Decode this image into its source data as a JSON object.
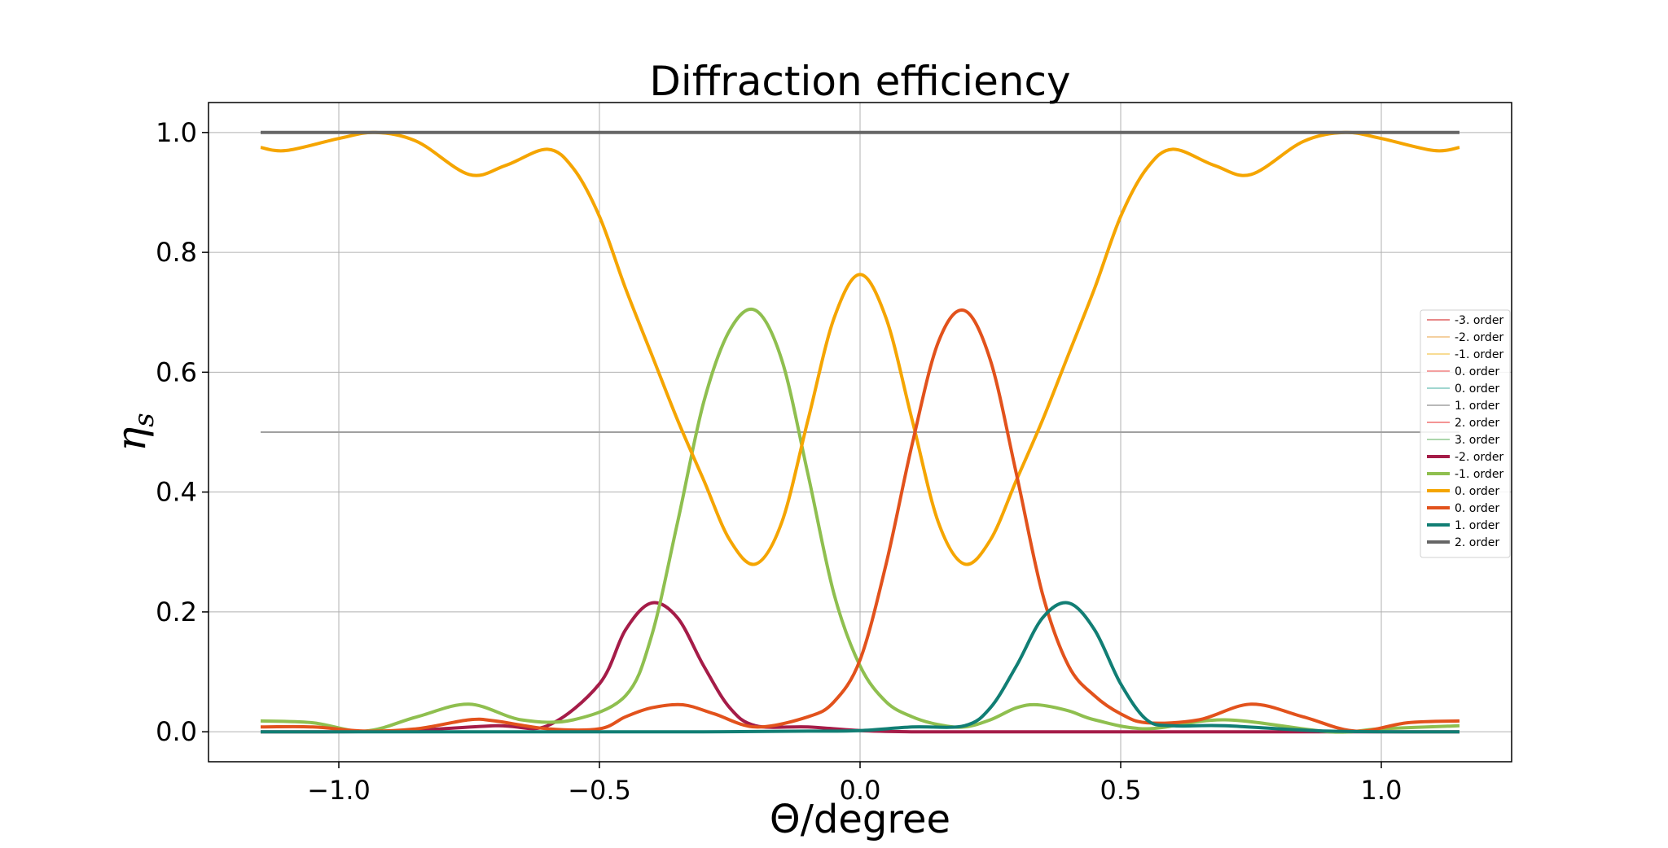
{
  "chart_data": {
    "type": "line",
    "title": "Diffraction efficiency",
    "xlabel": "Θ/degree",
    "ylabel": "η",
    "ylabel_subscript": "s",
    "xlim": [
      -1.25,
      1.25
    ],
    "ylim": [
      -0.05,
      1.05
    ],
    "xticks": [
      -1.0,
      -0.5,
      0.0,
      0.5,
      1.0
    ],
    "xtick_labels": [
      "−1.0",
      "−0.5",
      "0.0",
      "0.5",
      "1.0"
    ],
    "yticks": [
      0.0,
      0.2,
      0.4,
      0.6,
      0.8,
      1.0
    ],
    "ytick_labels": [
      "0.0",
      "0.2",
      "0.4",
      "0.6",
      "0.8",
      "1.0"
    ],
    "grid": true,
    "legend_placement": "center-right",
    "x_range": [
      -1.15,
      1.15
    ],
    "series": [
      {
        "name": "-3. order",
        "color": "#e06060",
        "weight": "thin"
      },
      {
        "name": "-2. order",
        "color": "#f0c080",
        "weight": "thin"
      },
      {
        "name": "-1. order",
        "color": "#f5d070",
        "weight": "thin"
      },
      {
        "name": "0. order",
        "color": "#f08080",
        "weight": "thin"
      },
      {
        "name": "0. order",
        "color": "#80c8c0",
        "weight": "thin"
      },
      {
        "name": "1. order",
        "color": "#a0a0a0",
        "weight": "thin",
        "x": [
          -1.15,
          1.15
        ],
        "y": [
          0.5,
          0.5
        ]
      },
      {
        "name": "2. order",
        "color": "#f07070",
        "weight": "thin"
      },
      {
        "name": "3. order",
        "color": "#90c890",
        "weight": "thin"
      },
      {
        "name": "-2. order",
        "color": "#a51c48",
        "weight": "thick",
        "x": [
          -1.15,
          -0.9,
          -0.7,
          -0.6,
          -0.5,
          -0.45,
          -0.4,
          -0.35,
          -0.3,
          -0.25,
          -0.2,
          -0.1,
          0.0,
          0.1,
          0.2,
          0.3,
          0.5,
          0.7,
          0.9,
          1.15
        ],
        "y": [
          0.0,
          0.001,
          0.01,
          0.01,
          0.08,
          0.17,
          0.215,
          0.19,
          0.11,
          0.04,
          0.01,
          0.008,
          0.002,
          0.0,
          0.0,
          0.0,
          0.0,
          0.0,
          0.0,
          0.0
        ]
      },
      {
        "name": "-1. order",
        "color": "#8fbf4f",
        "weight": "thick",
        "x": [
          -1.15,
          -1.05,
          -0.95,
          -0.85,
          -0.75,
          -0.65,
          -0.55,
          -0.45,
          -0.4,
          -0.35,
          -0.3,
          -0.25,
          -0.2,
          -0.15,
          -0.1,
          -0.05,
          0.0,
          0.05,
          0.1,
          0.15,
          0.2,
          0.25,
          0.3,
          0.34,
          0.4,
          0.45,
          0.55,
          0.7,
          0.9,
          1.0,
          1.15
        ],
        "y": [
          0.018,
          0.015,
          0.001,
          0.025,
          0.046,
          0.02,
          0.02,
          0.06,
          0.16,
          0.35,
          0.55,
          0.67,
          0.703,
          0.62,
          0.43,
          0.23,
          0.11,
          0.05,
          0.025,
          0.012,
          0.008,
          0.02,
          0.04,
          0.045,
          0.035,
          0.02,
          0.005,
          0.02,
          0.0,
          0.005,
          0.01
        ]
      },
      {
        "name": "0. order",
        "color": "#f5a500",
        "weight": "thick",
        "x": [
          -1.15,
          -1.1,
          -1.0,
          -0.93,
          -0.85,
          -0.75,
          -0.68,
          -0.6,
          -0.55,
          -0.5,
          -0.45,
          -0.4,
          -0.35,
          -0.3,
          -0.25,
          -0.2,
          -0.15,
          -0.1,
          -0.05,
          0.0,
          0.05,
          0.1,
          0.15,
          0.2,
          0.25,
          0.3,
          0.35,
          0.4,
          0.45,
          0.5,
          0.55,
          0.6,
          0.68,
          0.75,
          0.85,
          0.93,
          1.0,
          1.1,
          1.15
        ],
        "y": [
          0.975,
          0.97,
          0.99,
          1.0,
          0.985,
          0.93,
          0.945,
          0.972,
          0.94,
          0.86,
          0.74,
          0.63,
          0.52,
          0.42,
          0.32,
          0.28,
          0.35,
          0.52,
          0.69,
          0.763,
          0.69,
          0.52,
          0.35,
          0.28,
          0.32,
          0.42,
          0.52,
          0.63,
          0.74,
          0.86,
          0.94,
          0.972,
          0.945,
          0.93,
          0.985,
          1.0,
          0.99,
          0.97,
          0.975
        ]
      },
      {
        "name": "0. order",
        "color": "#e2521c",
        "weight": "thick",
        "x": [
          -1.15,
          -1.05,
          -0.95,
          -0.85,
          -0.75,
          -0.7,
          -0.6,
          -0.5,
          -0.45,
          -0.4,
          -0.34,
          -0.28,
          -0.2,
          -0.1,
          -0.05,
          0.0,
          0.05,
          0.1,
          0.15,
          0.2,
          0.25,
          0.3,
          0.35,
          0.4,
          0.45,
          0.5,
          0.55,
          0.65,
          0.75,
          0.85,
          0.95,
          1.05,
          1.15
        ],
        "y": [
          0.008,
          0.008,
          0.001,
          0.005,
          0.02,
          0.018,
          0.005,
          0.005,
          0.025,
          0.04,
          0.045,
          0.03,
          0.008,
          0.025,
          0.05,
          0.12,
          0.28,
          0.48,
          0.65,
          0.703,
          0.62,
          0.43,
          0.23,
          0.11,
          0.06,
          0.03,
          0.015,
          0.02,
          0.046,
          0.025,
          0.001,
          0.015,
          0.018
        ]
      },
      {
        "name": "1. order",
        "color": "#117e74",
        "weight": "thick",
        "x": [
          -1.15,
          -0.9,
          -0.7,
          -0.5,
          -0.3,
          -0.1,
          0.0,
          0.1,
          0.2,
          0.25,
          0.3,
          0.35,
          0.4,
          0.45,
          0.5,
          0.55,
          0.6,
          0.7,
          0.9,
          1.15
        ],
        "y": [
          0.0,
          0.0,
          0.0,
          0.0,
          0.0,
          0.001,
          0.002,
          0.008,
          0.01,
          0.04,
          0.11,
          0.19,
          0.215,
          0.17,
          0.08,
          0.02,
          0.01,
          0.01,
          0.001,
          0.0
        ]
      },
      {
        "name": "2. order",
        "color": "#666666",
        "weight": "thick",
        "x": [
          -1.15,
          1.15
        ],
        "y": [
          1.0,
          1.0
        ]
      }
    ]
  }
}
